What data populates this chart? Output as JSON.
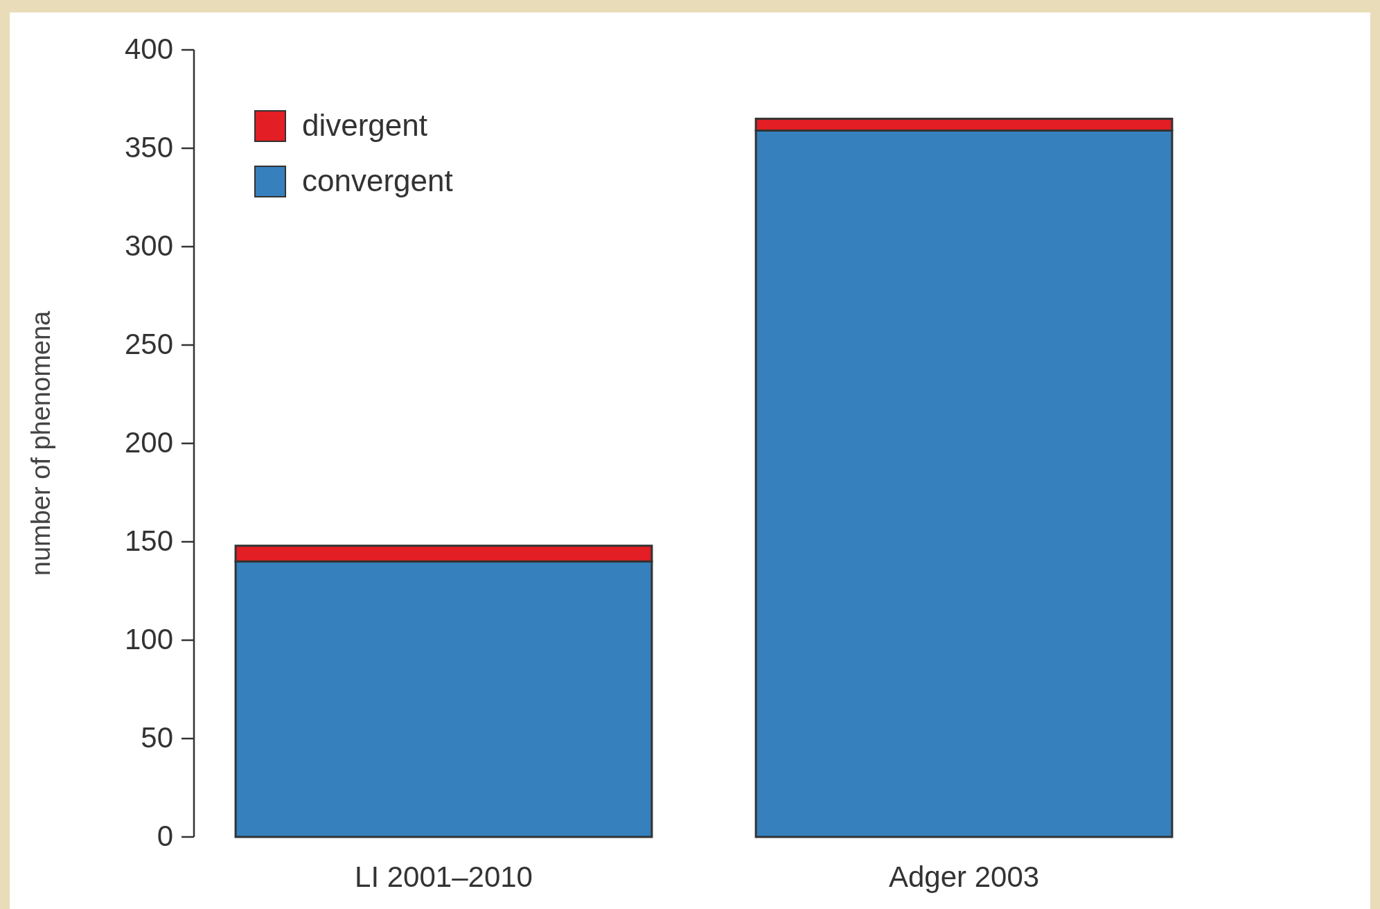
{
  "chart_data": {
    "type": "bar",
    "stacked": true,
    "ylabel": "number of phenomena",
    "categories": [
      "LI 2001–2010",
      "Adger 2003"
    ],
    "series": [
      {
        "name": "convergent",
        "color": "#3580bd",
        "values": [
          140,
          359
        ]
      },
      {
        "name": "divergent",
        "color": "#e31e24",
        "values": [
          8,
          6
        ]
      }
    ],
    "ylim": [
      0,
      400
    ],
    "yticks": [
      0,
      50,
      100,
      150,
      200,
      250,
      300,
      350,
      400
    ],
    "legend": "top left",
    "grid": false
  }
}
